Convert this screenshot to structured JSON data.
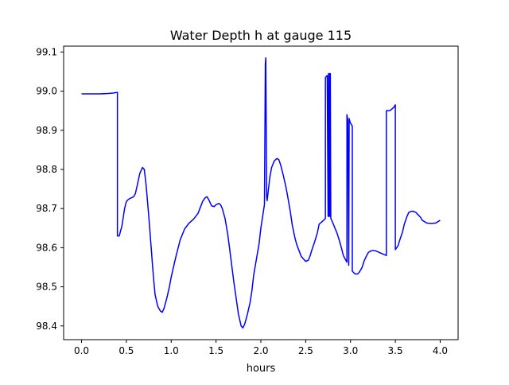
{
  "chart_data": {
    "type": "line",
    "title": "Water Depth h at gauge 115",
    "xlabel": "hours",
    "ylabel": "",
    "xlim": [
      -0.2,
      4.2
    ],
    "ylim": [
      98.365,
      99.115
    ],
    "x_ticks": [
      0.0,
      0.5,
      1.0,
      1.5,
      2.0,
      2.5,
      3.0,
      3.5,
      4.0
    ],
    "x_tick_labels": [
      "0.0",
      "0.5",
      "1.0",
      "1.5",
      "2.0",
      "2.5",
      "3.0",
      "3.5",
      "4.0"
    ],
    "y_ticks": [
      98.4,
      98.5,
      98.6,
      98.7,
      98.8,
      98.9,
      99.0,
      99.1
    ],
    "y_tick_labels": [
      "98.4",
      "98.5",
      "98.6",
      "98.7",
      "98.8",
      "98.9",
      "99.0",
      "99.1"
    ],
    "grid": false,
    "legend": "none",
    "series": [
      {
        "color": "#0000ff",
        "x": [
          0.0,
          0.1,
          0.2,
          0.3,
          0.35,
          0.4,
          0.4,
          0.42,
          0.45,
          0.48,
          0.5,
          0.52,
          0.55,
          0.58,
          0.6,
          0.62,
          0.65,
          0.68,
          0.7,
          0.72,
          0.75,
          0.78,
          0.8,
          0.82,
          0.85,
          0.88,
          0.9,
          0.92,
          0.95,
          0.98,
          1.0,
          1.05,
          1.1,
          1.15,
          1.2,
          1.25,
          1.3,
          1.35,
          1.38,
          1.4,
          1.42,
          1.45,
          1.48,
          1.5,
          1.53,
          1.55,
          1.57,
          1.6,
          1.63,
          1.65,
          1.7,
          1.75,
          1.78,
          1.8,
          1.82,
          1.85,
          1.88,
          1.9,
          1.92,
          1.95,
          1.98,
          2.0,
          2.02,
          2.04,
          2.05,
          2.055,
          2.06,
          2.065,
          2.07,
          2.08,
          2.1,
          2.12,
          2.15,
          2.18,
          2.2,
          2.22,
          2.25,
          2.28,
          2.3,
          2.33,
          2.35,
          2.38,
          2.4,
          2.43,
          2.45,
          2.48,
          2.5,
          2.53,
          2.55,
          2.57,
          2.6,
          2.63,
          2.65,
          2.7,
          2.72,
          2.72,
          2.74,
          2.75,
          2.755,
          2.76,
          2.765,
          2.77,
          2.775,
          2.78,
          2.8,
          2.83,
          2.85,
          2.88,
          2.9,
          2.92,
          2.95,
          2.96,
          2.96,
          2.97,
          2.98,
          2.985,
          2.99,
          3.0,
          3.01,
          3.02,
          3.02,
          3.05,
          3.08,
          3.1,
          3.13,
          3.15,
          3.18,
          3.2,
          3.23,
          3.25,
          3.28,
          3.3,
          3.33,
          3.35,
          3.38,
          3.4,
          3.4,
          3.43,
          3.45,
          3.48,
          3.5,
          3.5,
          3.53,
          3.55,
          3.58,
          3.6,
          3.63,
          3.65,
          3.68,
          3.7,
          3.73,
          3.75,
          3.78,
          3.8,
          3.85,
          3.9,
          3.95,
          4.0
        ],
        "y": [
          98.993,
          98.993,
          98.993,
          98.994,
          98.995,
          98.997,
          98.63,
          98.63,
          98.655,
          98.7,
          98.718,
          98.723,
          98.727,
          98.73,
          98.738,
          98.758,
          98.79,
          98.805,
          98.8,
          98.76,
          98.68,
          98.59,
          98.53,
          98.48,
          98.45,
          98.438,
          98.435,
          98.445,
          98.47,
          98.5,
          98.525,
          98.575,
          98.62,
          98.648,
          98.663,
          98.673,
          98.688,
          98.718,
          98.728,
          98.73,
          98.722,
          98.707,
          98.705,
          98.71,
          98.713,
          98.71,
          98.7,
          98.675,
          98.635,
          98.6,
          98.51,
          98.43,
          98.4,
          98.395,
          98.405,
          98.43,
          98.46,
          98.49,
          98.53,
          98.57,
          98.61,
          98.65,
          98.68,
          98.71,
          99.07,
          99.085,
          98.9,
          98.73,
          98.72,
          98.74,
          98.78,
          98.805,
          98.822,
          98.828,
          98.825,
          98.812,
          98.785,
          98.755,
          98.73,
          98.69,
          98.658,
          98.625,
          98.608,
          98.59,
          98.578,
          98.57,
          98.565,
          98.568,
          98.58,
          98.595,
          98.615,
          98.638,
          98.66,
          98.67,
          98.675,
          99.035,
          99.04,
          98.68,
          99.045,
          98.68,
          99.045,
          98.68,
          99.045,
          98.675,
          98.665,
          98.648,
          98.637,
          98.615,
          98.598,
          98.58,
          98.567,
          98.563,
          98.94,
          98.925,
          98.555,
          98.93,
          98.925,
          98.918,
          98.915,
          98.91,
          98.54,
          98.533,
          98.533,
          98.538,
          98.55,
          98.565,
          98.58,
          98.588,
          98.592,
          98.593,
          98.592,
          98.59,
          98.587,
          98.585,
          98.582,
          98.58,
          98.95,
          98.95,
          98.952,
          98.958,
          98.965,
          98.595,
          98.605,
          98.62,
          98.64,
          98.66,
          98.68,
          98.69,
          98.693,
          98.693,
          98.69,
          98.685,
          98.678,
          98.67,
          98.663,
          98.662,
          98.663,
          98.67
        ]
      }
    ]
  }
}
